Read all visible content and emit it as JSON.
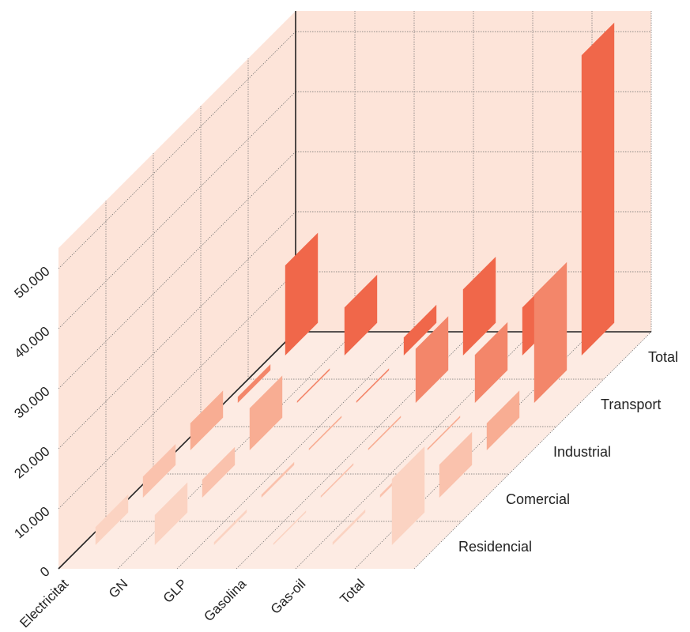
{
  "chart_data": {
    "type": "bar",
    "projection": "3d",
    "title": "",
    "xlabel": "",
    "ylabel": "",
    "categories": [
      "Electricitat",
      "GN",
      "GLP",
      "Gasolina",
      "Gas-oil",
      "Total"
    ],
    "series": [
      {
        "name": "Residencial",
        "color": "#fbd3c2",
        "values": [
          3000,
          5000,
          500,
          300,
          500,
          11000
        ]
      },
      {
        "name": "Comercial",
        "color": "#fac2ad",
        "values": [
          3500,
          3000,
          500,
          300,
          500,
          5500
        ]
      },
      {
        "name": "Industrial",
        "color": "#f8ad93",
        "values": [
          4500,
          7000,
          300,
          300,
          300,
          4500
        ]
      },
      {
        "name": "Transport",
        "color": "#f3866a",
        "values": [
          1000,
          300,
          300,
          9000,
          8000,
          18000
        ]
      },
      {
        "name": "Total",
        "color": "#f0674a",
        "values": [
          15000,
          8000,
          3000,
          11000,
          8000,
          50000
        ]
      }
    ],
    "zlim": [
      0,
      50000
    ],
    "zticks": [
      "0",
      "10.000",
      "20.000",
      "30.000",
      "40.000",
      "50.000"
    ],
    "grid": true,
    "colors": {
      "wall": "#fde4d9",
      "floor": "#fdebe3",
      "grid": "#6e6e6e",
      "axis": "#222222"
    }
  }
}
